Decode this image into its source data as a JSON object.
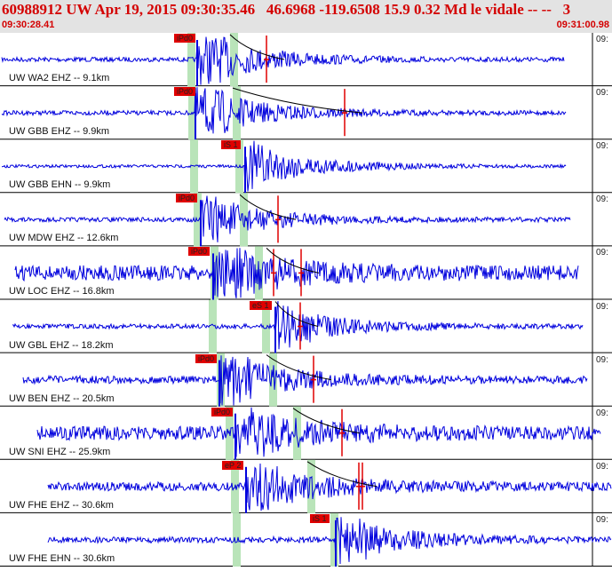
{
  "header": {
    "title": "60988912 UW Apr 19, 2015 09:30:35.46   46.6968 -119.6508 15.9 0.32 Md le vidale -- --   3",
    "start_time": "09:30:28.41",
    "end_time": "09:31:00.98"
  },
  "right_time_label": "09:",
  "colors": {
    "trace": "#0000dd",
    "pick": "#e00000",
    "window": "#b9e4b9",
    "header_text": "#d40000",
    "moveout_curve": "#000000"
  },
  "traces": [
    {
      "label": "UW WA2 EHZ -- 9.1km",
      "pick": "iPd0",
      "amp": 3,
      "burst": 1.0
    },
    {
      "label": "UW GBB EHZ -- 9.9km",
      "pick": "iPd0",
      "amp": 3,
      "burst": 1.0
    },
    {
      "label": "UW GBB EHN -- 9.9km",
      "pick": "iS 1",
      "amp": 2,
      "burst": 0.9
    },
    {
      "label": "UW MDW EHZ -- 12.6km",
      "pick": "iPd0",
      "amp": 3,
      "burst": 0.9
    },
    {
      "label": "UW LOC EHZ -- 16.8km",
      "pick": "iPd0",
      "amp": 10,
      "burst": 1.0
    },
    {
      "label": "UW GBL EHZ -- 18.2km",
      "pick": "eS 1",
      "amp": 3,
      "burst": 0.8
    },
    {
      "label": "UW BEN EHZ -- 20.5km",
      "pick": "iPd0",
      "amp": 5,
      "burst": 1.0
    },
    {
      "label": "UW SNI EHZ -- 25.9km",
      "pick": "iPd0",
      "amp": 9,
      "burst": 1.0
    },
    {
      "label": "UW FHE EHZ -- 30.6km",
      "pick": "eP 2",
      "amp": 6,
      "burst": 1.0
    },
    {
      "label": "UW FHE EHN -- 30.6km",
      "pick": "iS 1",
      "amp": 4,
      "burst": 0.9
    }
  ]
}
